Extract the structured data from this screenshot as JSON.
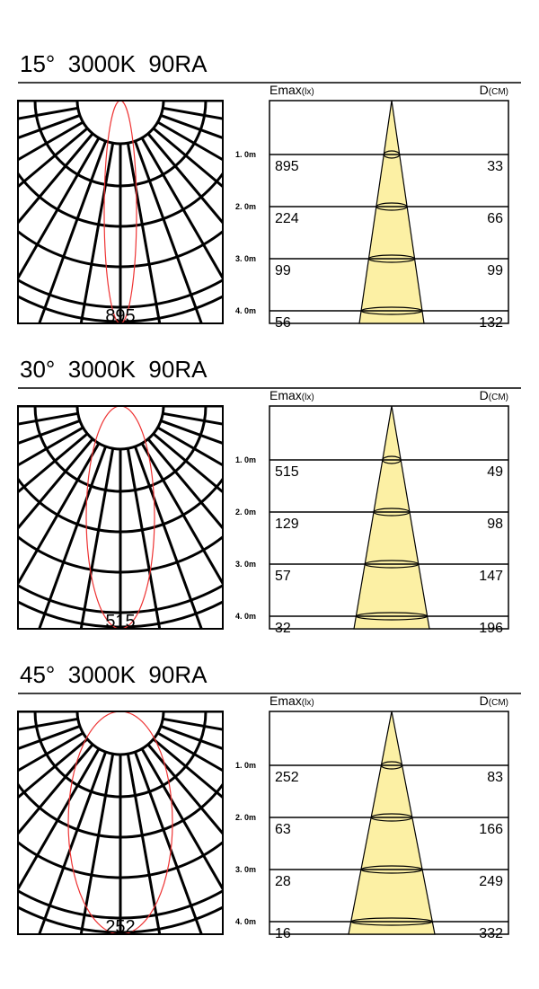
{
  "distances": [
    "1. 0m",
    "2. 0m",
    "3. 0m",
    "4. 0m"
  ],
  "emax_header": "Emax",
  "emax_unit": "(lx)",
  "d_header": "D",
  "d_unit": "(CM)",
  "panels": [
    {
      "title": "15°  3000K  90RA",
      "emax": [
        "895",
        "224",
        "99",
        "56"
      ],
      "diameter": [
        "33",
        "66",
        "99",
        "132"
      ]
    },
    {
      "title": "30°  3000K  90RA",
      "emax": [
        "515",
        "129",
        "57",
        "32"
      ],
      "diameter": [
        "49",
        "98",
        "147",
        "196"
      ]
    },
    {
      "title": "45°  3000K  90RA",
      "emax": [
        "252",
        "63",
        "28",
        "16"
      ],
      "diameter": [
        "83",
        "166",
        "249",
        "332"
      ]
    }
  ]
}
